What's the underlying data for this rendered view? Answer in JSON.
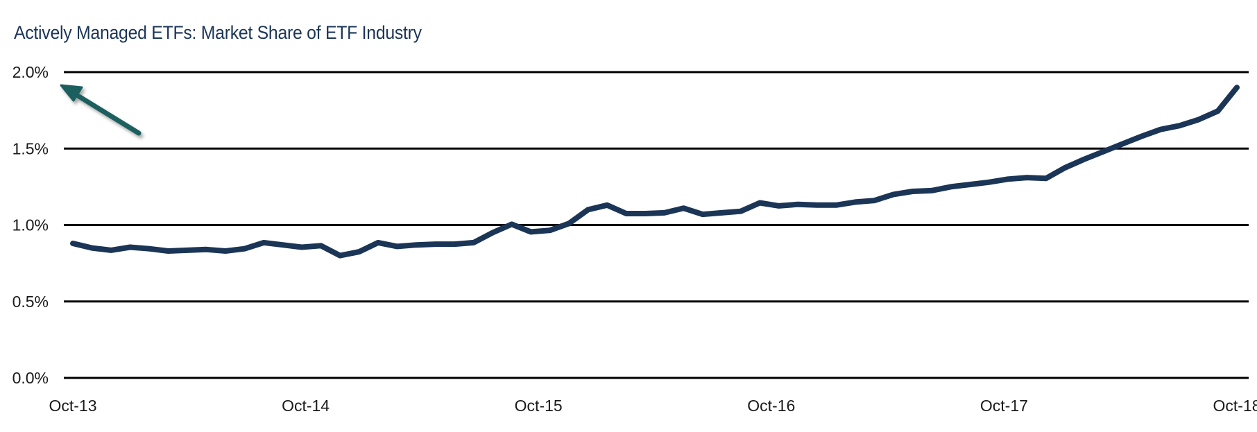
{
  "chart_data": {
    "type": "line",
    "title": "Actively Managed ETFs: Market Share of ETF Industry",
    "xlabel": "",
    "ylabel": "",
    "ylim": [
      0,
      2.0
    ],
    "y_ticks": [
      "0.0%",
      "0.5%",
      "1.0%",
      "1.5%",
      "2.0%"
    ],
    "y_tick_values": [
      0,
      0.5,
      1.0,
      1.5,
      2.0
    ],
    "x_ticks": [
      "Oct-13",
      "Oct-14",
      "Oct-15",
      "Oct-16",
      "Oct-17",
      "Oct-18"
    ],
    "grid": true,
    "colors": {
      "line": "#1b3557",
      "grid": "#000000",
      "arrow": "#1d5e5e",
      "title": "#1b3557"
    },
    "annotation": "arrow pointing to upper-left at 2.0% gridline",
    "series": [
      {
        "values": [
          0.88,
          0.85,
          0.835,
          0.855,
          0.845,
          0.83,
          0.835,
          0.84,
          0.83,
          0.845,
          0.885,
          0.87,
          0.855,
          0.865,
          0.8,
          0.825,
          0.885,
          0.86,
          0.87,
          0.875,
          0.875,
          0.885,
          0.95,
          1.005,
          0.955,
          0.965,
          1.01,
          1.1,
          1.13,
          1.075,
          1.075,
          1.08,
          1.11,
          1.07,
          1.08,
          1.09,
          1.145,
          1.125,
          1.135,
          1.13,
          1.13,
          1.15,
          1.16,
          1.2,
          1.22,
          1.225,
          1.25,
          1.265,
          1.28,
          1.3,
          1.31,
          1.305,
          1.375,
          1.43,
          1.48,
          1.53,
          1.58,
          1.625,
          1.65,
          1.69,
          1.745,
          1.9
        ]
      }
    ]
  }
}
